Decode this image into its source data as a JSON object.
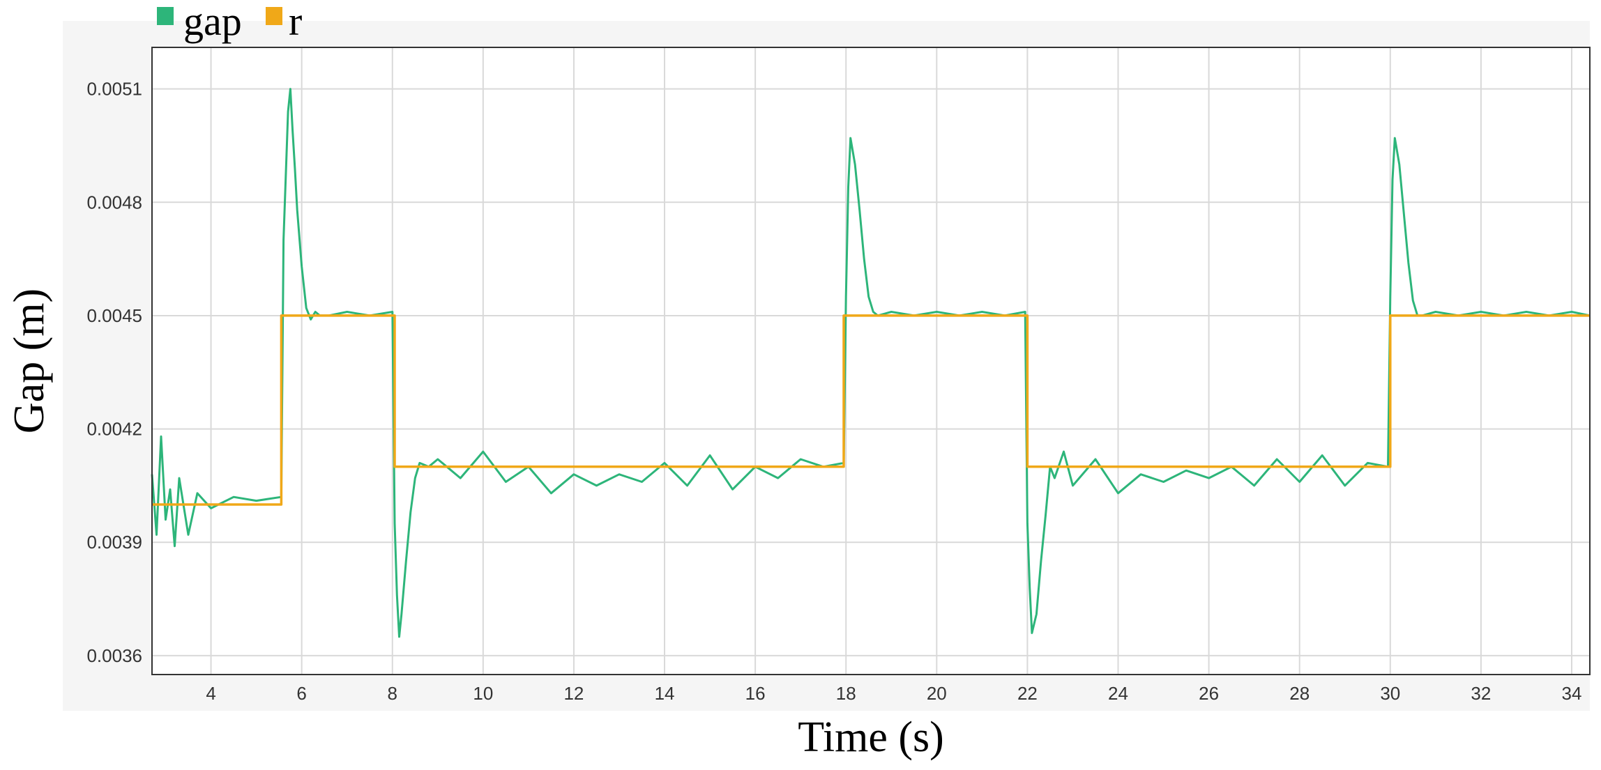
{
  "chart_data": {
    "type": "line",
    "title": "",
    "xlabel": "Time (s)",
    "ylabel": "Gap (m)",
    "xlim": [
      2.7,
      34.4
    ],
    "ylim": [
      0.00355,
      0.00521
    ],
    "x_ticks": [
      4,
      6,
      8,
      10,
      12,
      14,
      16,
      18,
      20,
      22,
      24,
      26,
      28,
      30,
      32,
      34
    ],
    "x_tick_labels": [
      "4",
      "6",
      "8",
      "10",
      "12",
      "14",
      "16",
      "18",
      "20",
      "22",
      "24",
      "26",
      "28",
      "30",
      "32",
      "34"
    ],
    "y_ticks": [
      0.0036,
      0.0039,
      0.0042,
      0.0045,
      0.0048,
      0.0051
    ],
    "y_tick_labels": [
      "0.0036",
      "0.0039",
      "0.0042",
      "0.0045",
      "0.0048",
      "0.0051"
    ],
    "grid": true,
    "legend": {
      "placement": "top-left"
    },
    "series": [
      {
        "name": "gap",
        "color": "#2db57a",
        "x": [
          2.7,
          2.8,
          2.9,
          3.0,
          3.1,
          3.2,
          3.3,
          3.5,
          3.7,
          4.0,
          4.5,
          5.0,
          5.55,
          5.6,
          5.7,
          5.75,
          5.8,
          5.85,
          5.9,
          6.0,
          6.1,
          6.2,
          6.3,
          6.4,
          6.6,
          7.0,
          7.5,
          8.0,
          8.05,
          8.1,
          8.15,
          8.2,
          8.3,
          8.4,
          8.5,
          8.6,
          8.8,
          9.0,
          9.5,
          10.0,
          10.5,
          11.0,
          11.5,
          12.0,
          12.5,
          13.0,
          13.5,
          14.0,
          14.5,
          15.0,
          15.5,
          16.0,
          16.5,
          17.0,
          17.5,
          17.95,
          18.0,
          18.05,
          18.1,
          18.2,
          18.3,
          18.4,
          18.5,
          18.6,
          18.7,
          19.0,
          19.5,
          20.0,
          20.5,
          21.0,
          21.5,
          21.95,
          22.0,
          22.05,
          22.1,
          22.2,
          22.3,
          22.4,
          22.5,
          22.6,
          22.8,
          23.0,
          23.5,
          24.0,
          24.5,
          25.0,
          25.5,
          26.0,
          26.5,
          27.0,
          27.5,
          28.0,
          28.5,
          29.0,
          29.5,
          29.95,
          30.0,
          30.05,
          30.1,
          30.2,
          30.3,
          30.4,
          30.5,
          30.6,
          30.7,
          31.0,
          31.5,
          32.0,
          32.5,
          33.0,
          33.5,
          34.0,
          34.4
        ],
        "values": [
          0.00408,
          0.00392,
          0.00418,
          0.00396,
          0.00404,
          0.00389,
          0.00407,
          0.00392,
          0.00403,
          0.00399,
          0.00402,
          0.00401,
          0.00402,
          0.0047,
          0.00504,
          0.0051,
          0.00499,
          0.00489,
          0.00478,
          0.00463,
          0.00452,
          0.00449,
          0.00451,
          0.0045,
          0.0045,
          0.00451,
          0.0045,
          0.00451,
          0.00395,
          0.00376,
          0.00365,
          0.00371,
          0.00385,
          0.00398,
          0.00407,
          0.00411,
          0.0041,
          0.00412,
          0.00407,
          0.00414,
          0.00406,
          0.0041,
          0.00403,
          0.00408,
          0.00405,
          0.00408,
          0.00406,
          0.00411,
          0.00405,
          0.00413,
          0.00404,
          0.0041,
          0.00407,
          0.00412,
          0.0041,
          0.00411,
          0.00455,
          0.00484,
          0.00497,
          0.0049,
          0.00478,
          0.00465,
          0.00455,
          0.00451,
          0.0045,
          0.00451,
          0.0045,
          0.00451,
          0.0045,
          0.00451,
          0.0045,
          0.00451,
          0.00395,
          0.00378,
          0.00366,
          0.00371,
          0.00385,
          0.00397,
          0.0041,
          0.00407,
          0.00414,
          0.00405,
          0.00412,
          0.00403,
          0.00408,
          0.00406,
          0.00409,
          0.00407,
          0.0041,
          0.00405,
          0.00412,
          0.00406,
          0.00413,
          0.00405,
          0.00411,
          0.0041,
          0.00455,
          0.00486,
          0.00497,
          0.0049,
          0.00477,
          0.00464,
          0.00454,
          0.0045,
          0.0045,
          0.00451,
          0.0045,
          0.00451,
          0.0045,
          0.00451,
          0.0045,
          0.00451,
          0.0045
        ]
      },
      {
        "name": "r",
        "color": "#f0a818",
        "x": [
          2.7,
          5.55,
          5.55,
          8.05,
          8.05,
          17.95,
          17.95,
          22.0,
          22.0,
          30.0,
          30.0,
          34.4
        ],
        "values": [
          0.004,
          0.004,
          0.0045,
          0.0045,
          0.0041,
          0.0041,
          0.0045,
          0.0045,
          0.0041,
          0.0041,
          0.0045,
          0.0045
        ]
      }
    ]
  }
}
